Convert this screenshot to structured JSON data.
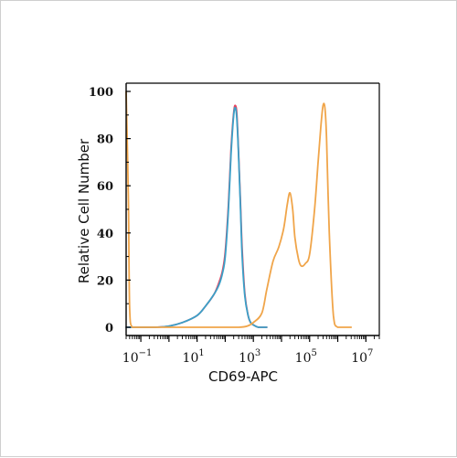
{
  "chart_data": {
    "type": "line",
    "title": "",
    "xlabel": "CD69-APC",
    "ylabel": "Relative Cell Number",
    "x_scale": "log",
    "xlim": [
      0.03,
      30000000
    ],
    "ylim": [
      0,
      100
    ],
    "grid": false,
    "legend": "none",
    "y_ticks": [
      "0",
      "20",
      "40",
      "60",
      "80",
      "100"
    ],
    "x_ticks": [
      {
        "base": "10",
        "exp": "−1",
        "value": 0.1
      },
      {
        "base": "10",
        "exp": "1",
        "value": 10
      },
      {
        "base": "10",
        "exp": "3",
        "value": 1000
      },
      {
        "base": "10",
        "exp": "5",
        "value": 100000
      },
      {
        "base": "10",
        "exp": "7",
        "value": 10000000
      }
    ],
    "series": [
      {
        "color": "#e8435e",
        "x": [
          0.03,
          0.05,
          0.1,
          0.3,
          1,
          3,
          10,
          20,
          40,
          60,
          80,
          100,
          130,
          160,
          200,
          230,
          260,
          300,
          350,
          400,
          500,
          650,
          800,
          1000,
          1500,
          3000
        ],
        "y": [
          0,
          0,
          0,
          0,
          0.5,
          2,
          5,
          9,
          14,
          19,
          24,
          32,
          52,
          75,
          91,
          94,
          90,
          73,
          52,
          33,
          14,
          5,
          2,
          1,
          0,
          0
        ]
      },
      {
        "color": "#3aa0c8",
        "x": [
          0.03,
          0.05,
          0.1,
          0.3,
          1,
          3,
          10,
          20,
          40,
          60,
          80,
          100,
          130,
          160,
          200,
          230,
          260,
          300,
          350,
          400,
          500,
          650,
          800,
          1000,
          1500,
          3000
        ],
        "y": [
          0,
          0,
          0,
          0,
          0.5,
          2,
          5,
          9,
          14,
          18,
          23,
          30,
          50,
          73,
          90,
          93,
          88,
          72,
          50,
          30,
          13,
          5,
          2,
          1,
          0,
          0
        ]
      },
      {
        "color": "#f0a54a",
        "x": [
          0.03,
          0.036,
          0.04,
          0.05,
          0.1,
          1,
          10,
          100,
          300,
          600,
          1000,
          2000,
          3000,
          5000,
          8000,
          12000,
          16000,
          20000,
          25000,
          30000,
          40000,
          50000,
          70000,
          100000,
          150000,
          200000,
          250000,
          300000,
          350000,
          400000,
          500000,
          700000,
          1000000,
          3000000
        ],
        "y": [
          100,
          55,
          8,
          0,
          0,
          0,
          0,
          0,
          0,
          0.5,
          2,
          6,
          16,
          28,
          34,
          42,
          52,
          57,
          50,
          38,
          29,
          26,
          27,
          31,
          50,
          70,
          85,
          94,
          93,
          80,
          40,
          5,
          0,
          0
        ]
      }
    ]
  }
}
